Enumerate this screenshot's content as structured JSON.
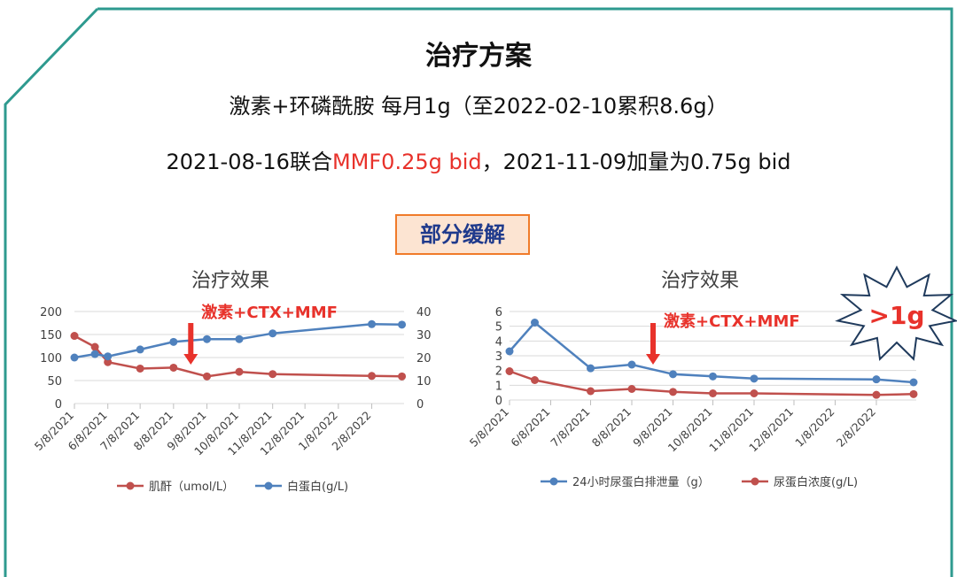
{
  "slide": {
    "title": "治疗方案",
    "line1": "激素+环磷酰胺 每月1g（至2022-02-10累积8.6g）",
    "line2_prefix": "2021-08-16联合",
    "line2_highlight": "MMF0.25g bid",
    "line2_suffix": "，2021-11-09加量为0.75g bid",
    "badge": "部分缓解",
    "colors": {
      "frame": "#2e9a8f",
      "highlight": "#e8322b",
      "badge_fill": "#fce4d2",
      "badge_border": "#f07b2a",
      "badge_text": "#1f3a8c"
    }
  },
  "chart_data": [
    {
      "type": "line",
      "title": "治疗效果",
      "x_ticks": [
        "5/8/2021",
        "6/8/2021",
        "7/8/2021",
        "8/8/2021",
        "9/8/2021",
        "10/8/2021",
        "11/8/2021",
        "12/8/2021",
        "1/8/2022",
        "2/8/2022"
      ],
      "ylim_left": [
        0,
        200
      ],
      "yticks_left": [
        "0",
        "50",
        "100",
        "150",
        "200"
      ],
      "ylim_right": [
        0,
        40
      ],
      "yticks_right": [
        "0",
        "10",
        "20",
        "30",
        "40"
      ],
      "grid": true,
      "legend_position": "bottom",
      "series": [
        {
          "name": "肌酐（umol/L）",
          "axis": "left",
          "color": "#c0504d",
          "x": [
            "2021-05-08",
            "2021-05-27",
            "2021-06-08",
            "2021-07-08",
            "2021-08-08",
            "2021-09-08",
            "2021-10-08",
            "2021-11-08",
            "2022-02-08",
            "2022-03-08"
          ],
          "y": [
            147,
            123,
            90,
            76,
            78,
            59,
            69,
            64,
            60,
            59
          ]
        },
        {
          "name": "白蛋白(g/L)",
          "axis": "right",
          "color": "#4f81bd",
          "x": [
            "2021-05-08",
            "2021-05-27",
            "2021-06-08",
            "2021-07-08",
            "2021-08-08",
            "2021-09-08",
            "2021-10-08",
            "2021-11-08",
            "2022-02-08",
            "2022-03-08"
          ],
          "y": [
            20,
            21.5,
            20.5,
            23.5,
            26.8,
            28,
            28,
            30.5,
            34.5,
            34.3
          ]
        }
      ],
      "annotation": {
        "text": "激素+CTX+MMF",
        "x": "2021-08-24",
        "arrow": "down",
        "color": "#e8322b"
      }
    },
    {
      "type": "line",
      "title": "治疗效果",
      "x_ticks": [
        "5/8/2021",
        "6/8/2021",
        "7/8/2021",
        "8/8/2021",
        "9/8/2021",
        "10/8/2021",
        "11/8/2021",
        "12/8/2021",
        "1/8/2022",
        "2/8/2022"
      ],
      "ylim": [
        0,
        6
      ],
      "yticks": [
        "0",
        "1",
        "2",
        "3",
        "4",
        "5",
        "6"
      ],
      "grid": true,
      "legend_position": "bottom",
      "series": [
        {
          "name": "24小时尿蛋白排泄量（g）",
          "color": "#4f81bd",
          "x": [
            "2021-05-08",
            "2021-05-27",
            "2021-07-08",
            "2021-08-08",
            "2021-09-08",
            "2021-10-08",
            "2021-11-08",
            "2022-02-08",
            "2022-03-08"
          ],
          "y": [
            3.3,
            5.25,
            2.15,
            2.4,
            1.75,
            1.6,
            1.45,
            1.4,
            1.2
          ]
        },
        {
          "name": "尿蛋白浓度(g/L)",
          "color": "#c0504d",
          "x": [
            "2021-05-08",
            "2021-05-27",
            "2021-07-08",
            "2021-08-08",
            "2021-09-08",
            "2021-10-08",
            "2021-11-08",
            "2022-02-08",
            "2022-03-08"
          ],
          "y": [
            1.95,
            1.35,
            0.6,
            0.75,
            0.55,
            0.45,
            0.45,
            0.35,
            0.4
          ]
        }
      ],
      "annotation": {
        "text": "激素+CTX+MMF",
        "x": "2021-08-24",
        "arrow": "down",
        "color": "#e8322b"
      },
      "callout": {
        "text": ">1g",
        "shape": "starburst",
        "text_color": "#e8322b",
        "border_color": "#1f3a5c"
      }
    }
  ]
}
